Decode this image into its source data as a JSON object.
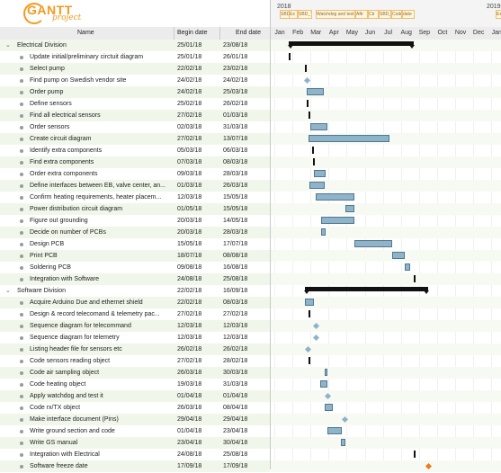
{
  "logo": {
    "main": "GANTT",
    "sub": "project"
  },
  "columns": {
    "name": "Name",
    "begin": "Begin date",
    "end": "End date"
  },
  "timeline": {
    "year_left": "2018",
    "year_right": "2019",
    "items": [
      "SBD_T1",
      "Ex",
      "SBD_T2",
      "Watchdog and test it",
      "Aftr",
      "Ctr",
      "SBD_T4",
      "Code",
      "date",
      "Ex"
    ]
  },
  "months": [
    "Jan",
    "Feb",
    "Mar",
    "Apr",
    "May",
    "Jun",
    "Jul",
    "Aug",
    "Sep",
    "Oct",
    "Nov",
    "Dec",
    "Jan"
  ],
  "colors": {
    "bar_fill": "#8fb3c9",
    "bar_border": "#4f7890",
    "summary": "#111111",
    "milestone": "#8fb3c9",
    "freeze_milestone": "#f07a1e",
    "row_alt": "#f1f6ea",
    "logo": "#f39a1e"
  },
  "tasks": [
    {
      "name": "Electrical Division",
      "begin": "25/01/18",
      "end": "23/08/18",
      "type": "group"
    },
    {
      "name": "Update initial/preliminary circtuit diagram",
      "begin": "25/01/18",
      "end": "26/01/18",
      "type": "stub"
    },
    {
      "name": "Select pump",
      "begin": "22/02/18",
      "end": "23/02/18",
      "type": "stub"
    },
    {
      "name": "Find pump on Swedish vendor site",
      "begin": "24/02/18",
      "end": "24/02/18",
      "type": "milestone"
    },
    {
      "name": "Order pump",
      "begin": "24/02/18",
      "end": "25/03/18",
      "type": "bar"
    },
    {
      "name": "Define sensors",
      "begin": "25/02/18",
      "end": "26/02/18",
      "type": "stub"
    },
    {
      "name": "Find all electrical sensors",
      "begin": "27/02/18",
      "end": "01/03/18",
      "type": "stub"
    },
    {
      "name": "Order sensors",
      "begin": "02/03/18",
      "end": "31/03/18",
      "type": "bar"
    },
    {
      "name": "Create circuit diagram",
      "begin": "27/02/18",
      "end": "13/07/18",
      "type": "bar"
    },
    {
      "name": "Identify extra components",
      "begin": "05/03/18",
      "end": "06/03/18",
      "type": "stub"
    },
    {
      "name": "Find extra components",
      "begin": "07/03/18",
      "end": "08/03/18",
      "type": "stub"
    },
    {
      "name": "Order extra components",
      "begin": "09/03/18",
      "end": "28/03/18",
      "type": "bar"
    },
    {
      "name": "Define interfaces between EB, valve center, an...",
      "begin": "01/03/18",
      "end": "26/03/18",
      "type": "bar"
    },
    {
      "name": "Confirm heating requirements, heater placem...",
      "begin": "12/03/18",
      "end": "15/05/18",
      "type": "bar"
    },
    {
      "name": "Power distribution circuit diagram",
      "begin": "01/05/18",
      "end": "15/05/18",
      "type": "bar"
    },
    {
      "name": "Figure out grounding",
      "begin": "20/03/18",
      "end": "14/05/18",
      "type": "bar"
    },
    {
      "name": "Decide on number of PCBs",
      "begin": "20/03/18",
      "end": "28/03/18",
      "type": "bar"
    },
    {
      "name": "Design PCB",
      "begin": "15/05/18",
      "end": "17/07/18",
      "type": "bar"
    },
    {
      "name": "Print PCB",
      "begin": "18/07/18",
      "end": "08/08/18",
      "type": "bar"
    },
    {
      "name": "Soldering PCB",
      "begin": "09/08/18",
      "end": "16/08/18",
      "type": "bar"
    },
    {
      "name": "Integration with Software",
      "begin": "24/08/18",
      "end": "25/08/18",
      "type": "stub"
    },
    {
      "name": "Software Division",
      "begin": "22/02/18",
      "end": "16/09/18",
      "type": "group"
    },
    {
      "name": "Acquire Arduino Due and ethernet shield",
      "begin": "22/02/18",
      "end": "08/03/18",
      "type": "bar"
    },
    {
      "name": "Design & record telecomand & telemetry pac...",
      "begin": "27/02/18",
      "end": "27/02/18",
      "type": "stub"
    },
    {
      "name": "Sequence diagram for telecommand",
      "begin": "12/03/18",
      "end": "12/03/18",
      "type": "milestone"
    },
    {
      "name": "Sequence diagram for telemetry",
      "begin": "12/03/18",
      "end": "12/03/18",
      "type": "milestone"
    },
    {
      "name": "Listing header file for sensors etc",
      "begin": "26/02/18",
      "end": "26/02/18",
      "type": "milestone"
    },
    {
      "name": "Code sensors reading object",
      "begin": "27/02/18",
      "end": "28/02/18",
      "type": "stub"
    },
    {
      "name": "Code air sampling object",
      "begin": "26/03/18",
      "end": "30/03/18",
      "type": "bar"
    },
    {
      "name": "Code heating object",
      "begin": "19/03/18",
      "end": "31/03/18",
      "type": "bar"
    },
    {
      "name": "Apply watchdog and test it",
      "begin": "01/04/18",
      "end": "01/04/18",
      "type": "milestone"
    },
    {
      "name": "Code rx/TX object",
      "begin": "26/03/18",
      "end": "08/04/18",
      "type": "bar"
    },
    {
      "name": "Make interface document (Pins)",
      "begin": "29/04/18",
      "end": "29/04/18",
      "type": "milestone"
    },
    {
      "name": "Write ground section and code",
      "begin": "01/04/18",
      "end": "23/04/18",
      "type": "bar"
    },
    {
      "name": "Write GS manual",
      "begin": "23/04/18",
      "end": "30/04/18",
      "type": "bar"
    },
    {
      "name": "Integration with Electrical",
      "begin": "24/08/18",
      "end": "25/08/18",
      "type": "stub"
    },
    {
      "name": "Software freeze date",
      "begin": "17/09/18",
      "end": "17/09/18",
      "type": "milestone-orange"
    }
  ]
}
